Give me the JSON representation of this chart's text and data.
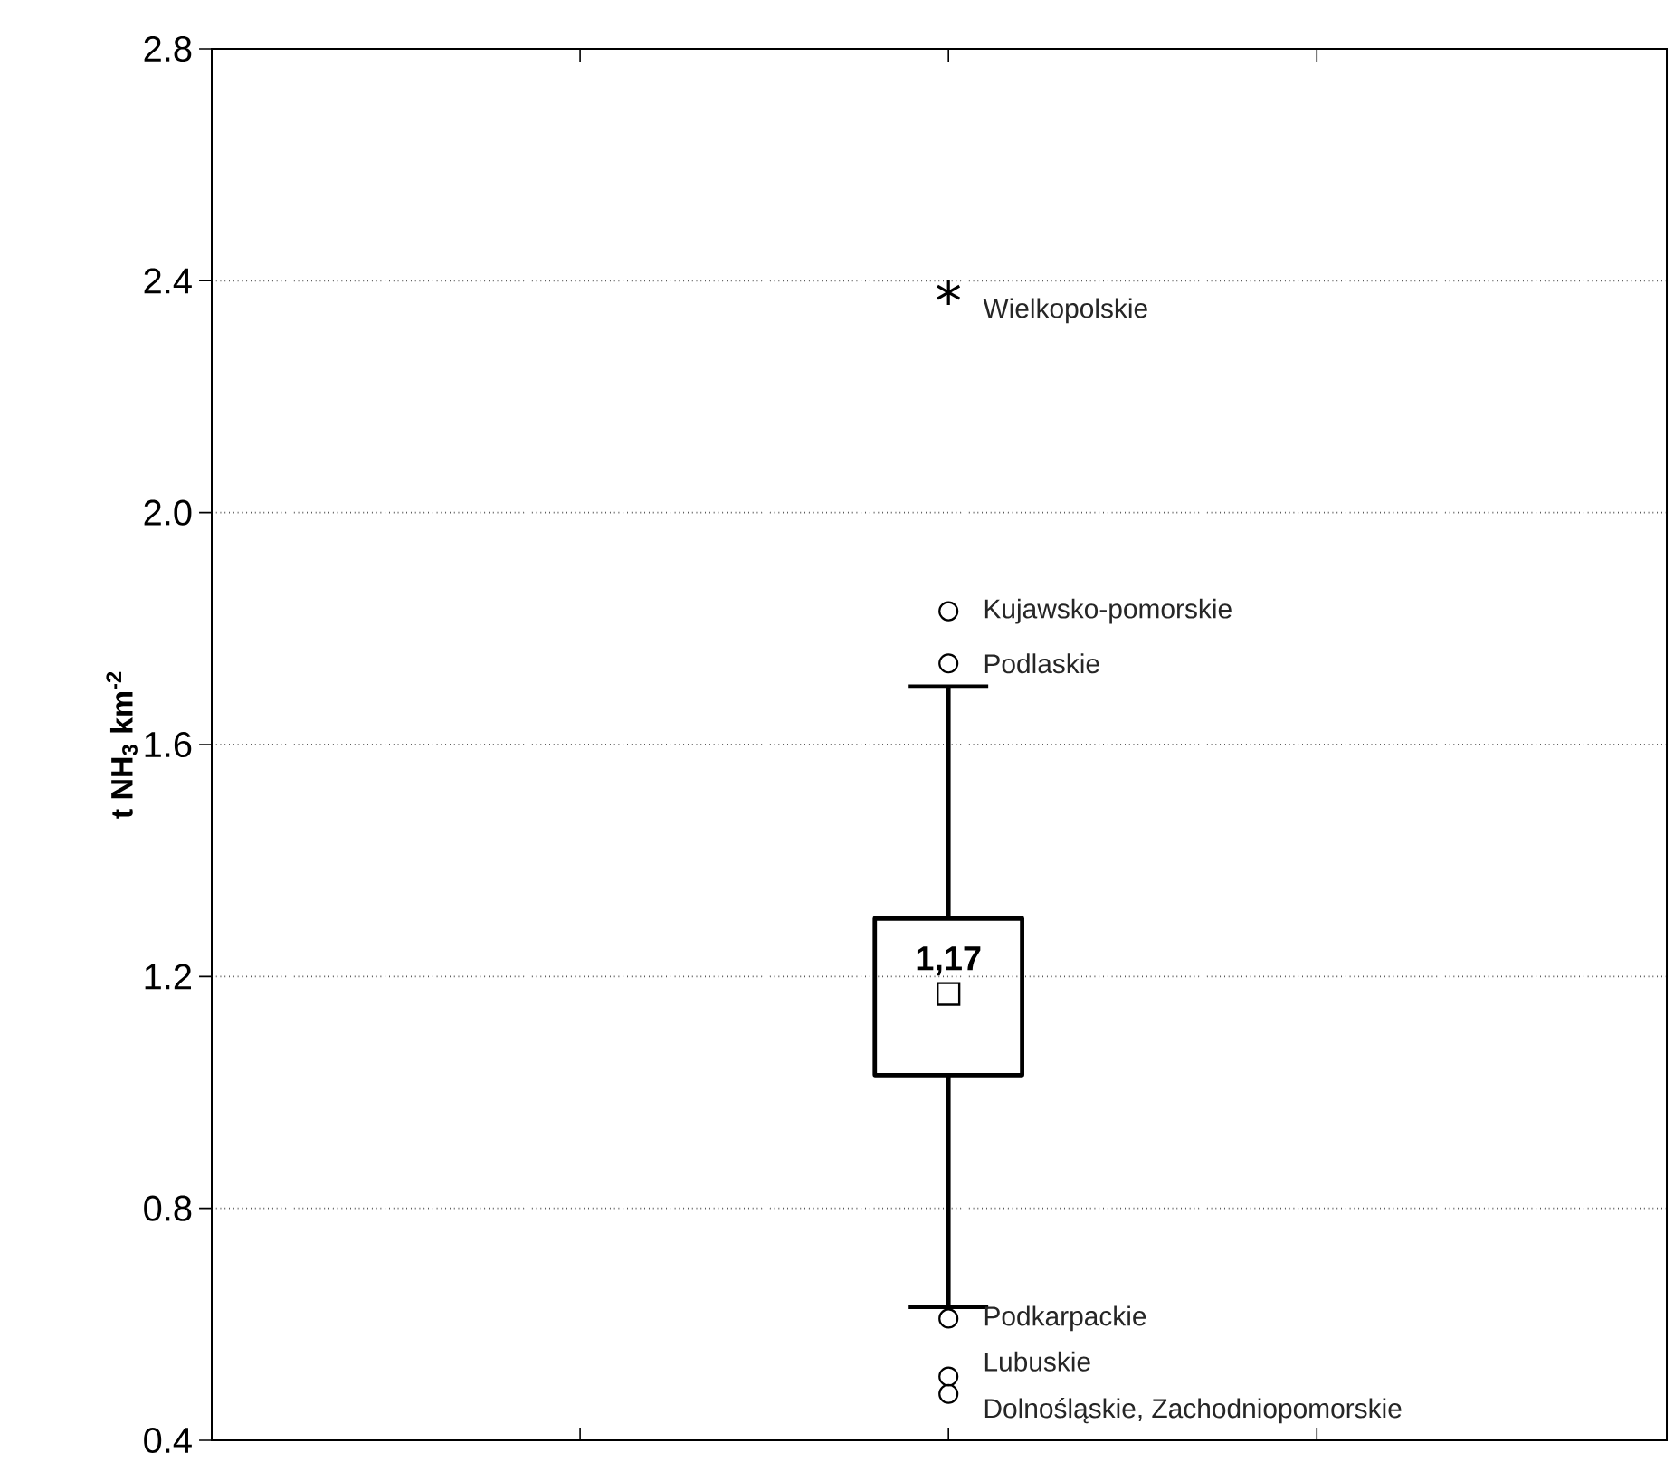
{
  "chart_data": {
    "type": "box",
    "categories": [
      null
    ],
    "ylabel": "t NH$_{3}$ km$^{-2}$",
    "ylim": [
      0.4,
      2.8
    ],
    "yticks": [
      0.4,
      0.8,
      1.2,
      1.6,
      {
        "value": 2.0,
        "label": "2.0"
      },
      2.4,
      2.8
    ],
    "grid": "y",
    "series": [
      {
        "color": "#000000",
        "boxes": [
          {
            "low": 0.63,
            "q1": 1.03,
            "median": 1.17,
            "q3": 1.3,
            "high": 1.7,
            "outliers": [
              1.83,
              1.74,
              0.61,
              0.51,
              0.48
            ]
          }
        ]
      },
      {
        "type": "scatter",
        "color": "#000000",
        "marker": "cross",
        "values": [
          2.38
        ]
      }
    ],
    "annotations": [
      "1,17",
      "Wielkopolskie",
      "Kujawsko-pomorskie",
      "Podlaskie",
      "Podkarpackie",
      "Lubuskie",
      "Dolnośląskie, Zachodniopomorskie"
    ]
  }
}
